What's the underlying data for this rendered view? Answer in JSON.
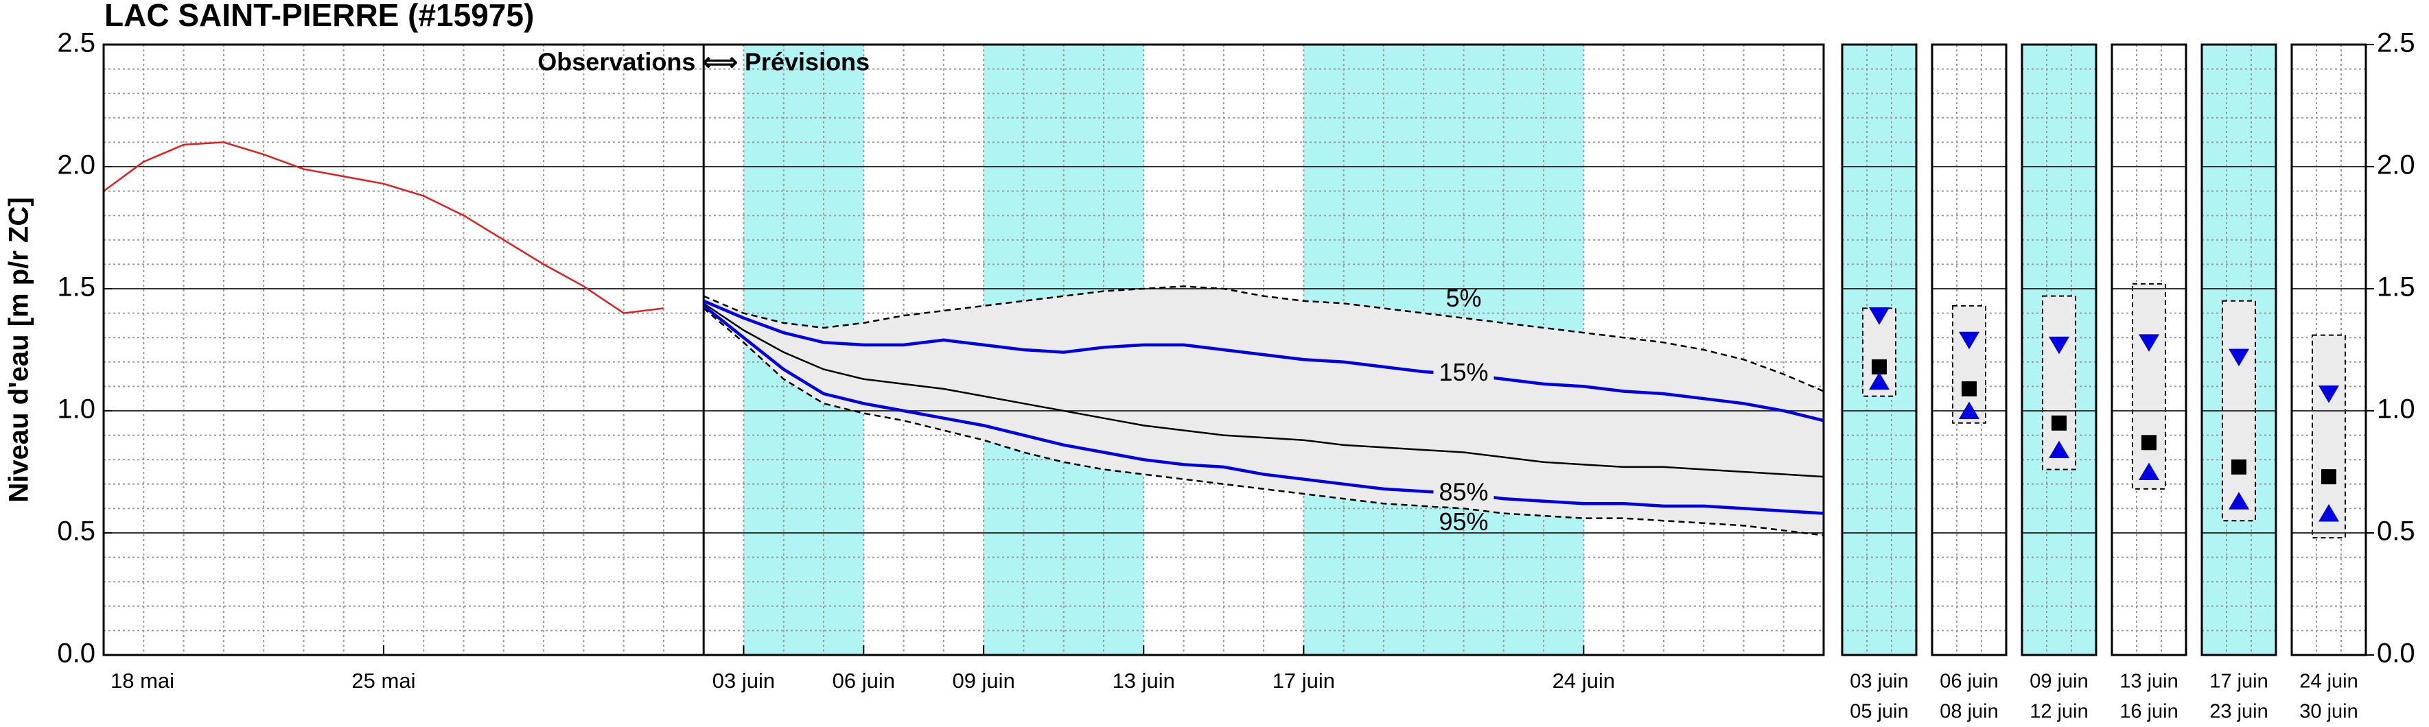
{
  "chart_data": {
    "type": "line",
    "title": "LAC SAINT-PIERRE (#15975)",
    "annotation": "Observations ⟺ Prévisions",
    "y_label": "Niveau d'eau [m p/r ZC]",
    "categories": [
      "18 mai",
      null,
      null,
      null,
      null,
      null,
      null,
      "25 mai",
      null,
      null,
      null,
      null,
      null,
      null,
      null,
      null,
      "03 juin",
      null,
      null,
      "06 juin",
      null,
      null,
      "09 juin",
      null,
      null,
      null,
      "13 juin",
      null,
      null,
      null,
      "17 juin",
      null,
      null,
      null,
      null,
      null,
      null,
      "24 juin",
      null,
      null,
      null,
      null,
      null,
      null
    ],
    "ylim": [
      0,
      2.5
    ],
    "yticks": [
      {
        "value": 0,
        "label": "0.0"
      },
      0.5,
      {
        "value": 1,
        "label": "1.0"
      },
      1.5,
      {
        "value": 2,
        "label": "2.0"
      },
      2.5
    ],
    "grid": true,
    "shade_color": "#b0f4f4",
    "band_color": "#ebebeb",
    "series": [
      {
        "color": "#e0201e",
        "values": [
          1.9,
          2.02,
          2.09,
          2.1,
          2.05,
          1.99,
          1.96,
          1.93,
          1.88,
          1.8,
          1.7,
          1.6,
          1.51,
          1.4,
          1.42,
          null,
          null,
          null,
          null,
          null,
          null,
          null,
          null,
          null,
          null,
          null,
          null,
          null,
          null,
          null,
          null,
          null,
          null,
          null,
          null,
          null,
          null,
          null,
          null,
          null,
          null,
          null,
          null,
          null
        ]
      },
      {
        "name": "5%",
        "color": "#000000",
        "dash": true,
        "values": [
          null,
          null,
          null,
          null,
          null,
          null,
          null,
          null,
          null,
          null,
          null,
          null,
          null,
          null,
          null,
          1.47,
          1.4,
          1.36,
          1.34,
          1.36,
          1.39,
          1.41,
          1.43,
          1.45,
          1.47,
          1.49,
          1.5,
          1.51,
          1.5,
          1.47,
          1.45,
          1.44,
          1.42,
          1.4,
          1.38,
          1.36,
          1.34,
          1.32,
          1.3,
          1.28,
          1.25,
          1.21,
          1.15,
          1.08
        ]
      },
      {
        "name": "15%",
        "color": "#0000e0",
        "values": [
          null,
          null,
          null,
          null,
          null,
          null,
          null,
          null,
          null,
          null,
          null,
          null,
          null,
          null,
          null,
          1.45,
          1.38,
          1.32,
          1.28,
          1.27,
          1.27,
          1.29,
          1.27,
          1.25,
          1.24,
          1.26,
          1.27,
          1.27,
          1.25,
          1.23,
          1.21,
          1.2,
          1.18,
          1.16,
          1.15,
          1.13,
          1.11,
          1.1,
          1.08,
          1.07,
          1.05,
          1.03,
          1.0,
          0.96
        ]
      },
      {
        "color": "#000000",
        "values": [
          null,
          null,
          null,
          null,
          null,
          null,
          null,
          null,
          null,
          null,
          null,
          null,
          null,
          null,
          null,
          1.44,
          1.33,
          1.24,
          1.17,
          1.13,
          1.11,
          1.09,
          1.06,
          1.03,
          1.0,
          0.97,
          0.94,
          0.92,
          0.9,
          0.89,
          0.88,
          0.86,
          0.85,
          0.84,
          0.83,
          0.81,
          0.79,
          0.78,
          0.77,
          0.77,
          0.76,
          0.75,
          0.74,
          0.73
        ]
      },
      {
        "name": "85%",
        "color": "#0000e0",
        "values": [
          null,
          null,
          null,
          null,
          null,
          null,
          null,
          null,
          null,
          null,
          null,
          null,
          null,
          null,
          null,
          1.43,
          1.3,
          1.17,
          1.07,
          1.03,
          1.0,
          0.97,
          0.94,
          0.9,
          0.86,
          0.83,
          0.8,
          0.78,
          0.77,
          0.74,
          0.72,
          0.7,
          0.68,
          0.67,
          0.66,
          0.64,
          0.63,
          0.62,
          0.62,
          0.61,
          0.61,
          0.6,
          0.59,
          0.58
        ]
      },
      {
        "name": "95%",
        "color": "#000000",
        "dash": true,
        "values": [
          null,
          null,
          null,
          null,
          null,
          null,
          null,
          null,
          null,
          null,
          null,
          null,
          null,
          null,
          null,
          1.42,
          1.28,
          1.13,
          1.03,
          0.99,
          0.96,
          0.92,
          0.88,
          0.83,
          0.79,
          0.76,
          0.74,
          0.72,
          0.7,
          0.68,
          0.66,
          0.64,
          0.62,
          0.61,
          0.6,
          0.58,
          0.57,
          0.56,
          0.56,
          0.55,
          0.54,
          0.53,
          0.51,
          0.49
        ]
      }
    ],
    "periods": [
      {
        "start": "03 juin",
        "end": "05 juin",
        "shaded": true,
        "values": [
          1.42,
          1.39,
          1.18,
          1.12,
          1.06
        ]
      },
      {
        "start": "06 juin",
        "end": "08 juin",
        "shaded": false,
        "values": [
          1.43,
          1.29,
          1.09,
          1.0,
          0.95
        ]
      },
      {
        "start": "09 juin",
        "end": "12 juin",
        "shaded": true,
        "values": [
          1.47,
          1.27,
          0.95,
          0.84,
          0.76
        ]
      },
      {
        "start": "13 juin",
        "end": "16 juin",
        "shaded": false,
        "values": [
          1.52,
          1.28,
          0.87,
          0.75,
          0.68
        ]
      },
      {
        "start": "17 juin",
        "end": "23 juin",
        "shaded": true,
        "values": [
          1.45,
          1.22,
          0.77,
          0.63,
          0.55
        ]
      },
      {
        "start": "24 juin",
        "end": "30 juin",
        "shaded": false,
        "values": [
          1.31,
          1.07,
          0.73,
          0.58,
          0.48
        ]
      }
    ]
  }
}
